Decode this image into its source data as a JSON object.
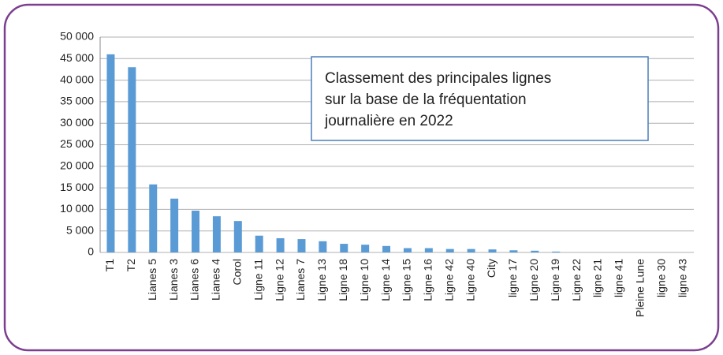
{
  "chart_data": {
    "type": "bar",
    "annotation": [
      "Classement des principales lignes",
      "sur la base de la fréquentation",
      "journalière en 2022"
    ],
    "categories": [
      "T1",
      "T2",
      "Lianes 5",
      "Lianes 3",
      "Lianes 6",
      "Lianes 4",
      "Corol",
      "Ligne 11",
      "Ligne 12",
      "Lianes 7",
      "Ligne 13",
      "Ligne 18",
      "Ligne 10",
      "Ligne 14",
      "Ligne 15",
      "Ligne 16",
      "Ligne 42",
      "Ligne 40",
      "City",
      "ligne 17",
      "Ligne 20",
      "Ligne 19",
      "Ligne 22",
      "ligne 21",
      "ligne 41",
      "Pleine Lune",
      "ligne 30",
      "ligne 43"
    ],
    "values": [
      46000,
      43000,
      15800,
      12500,
      9700,
      8400,
      7300,
      3900,
      3300,
      3100,
      2600,
      2000,
      1800,
      1500,
      1000,
      1000,
      800,
      800,
      700,
      500,
      400,
      200,
      0,
      0,
      0,
      0,
      0,
      0
    ],
    "color": "#5b9bd5",
    "ylim": [
      0,
      50000
    ],
    "yticks": [
      0,
      {
        "value": 5000,
        "label": "5 000"
      },
      {
        "value": 10000,
        "label": "10 000"
      },
      {
        "value": 15000,
        "label": "15 000"
      },
      {
        "value": 20000,
        "label": "20 000"
      },
      {
        "value": 25000,
        "label": "25 000"
      },
      {
        "value": 30000,
        "label": "30 000"
      },
      {
        "value": 35000,
        "label": "35 000"
      },
      {
        "value": 40000,
        "label": "40 000"
      },
      {
        "value": 45000,
        "label": "45 000"
      },
      {
        "value": 50000,
        "label": "50 000"
      }
    ],
    "grid": true
  }
}
